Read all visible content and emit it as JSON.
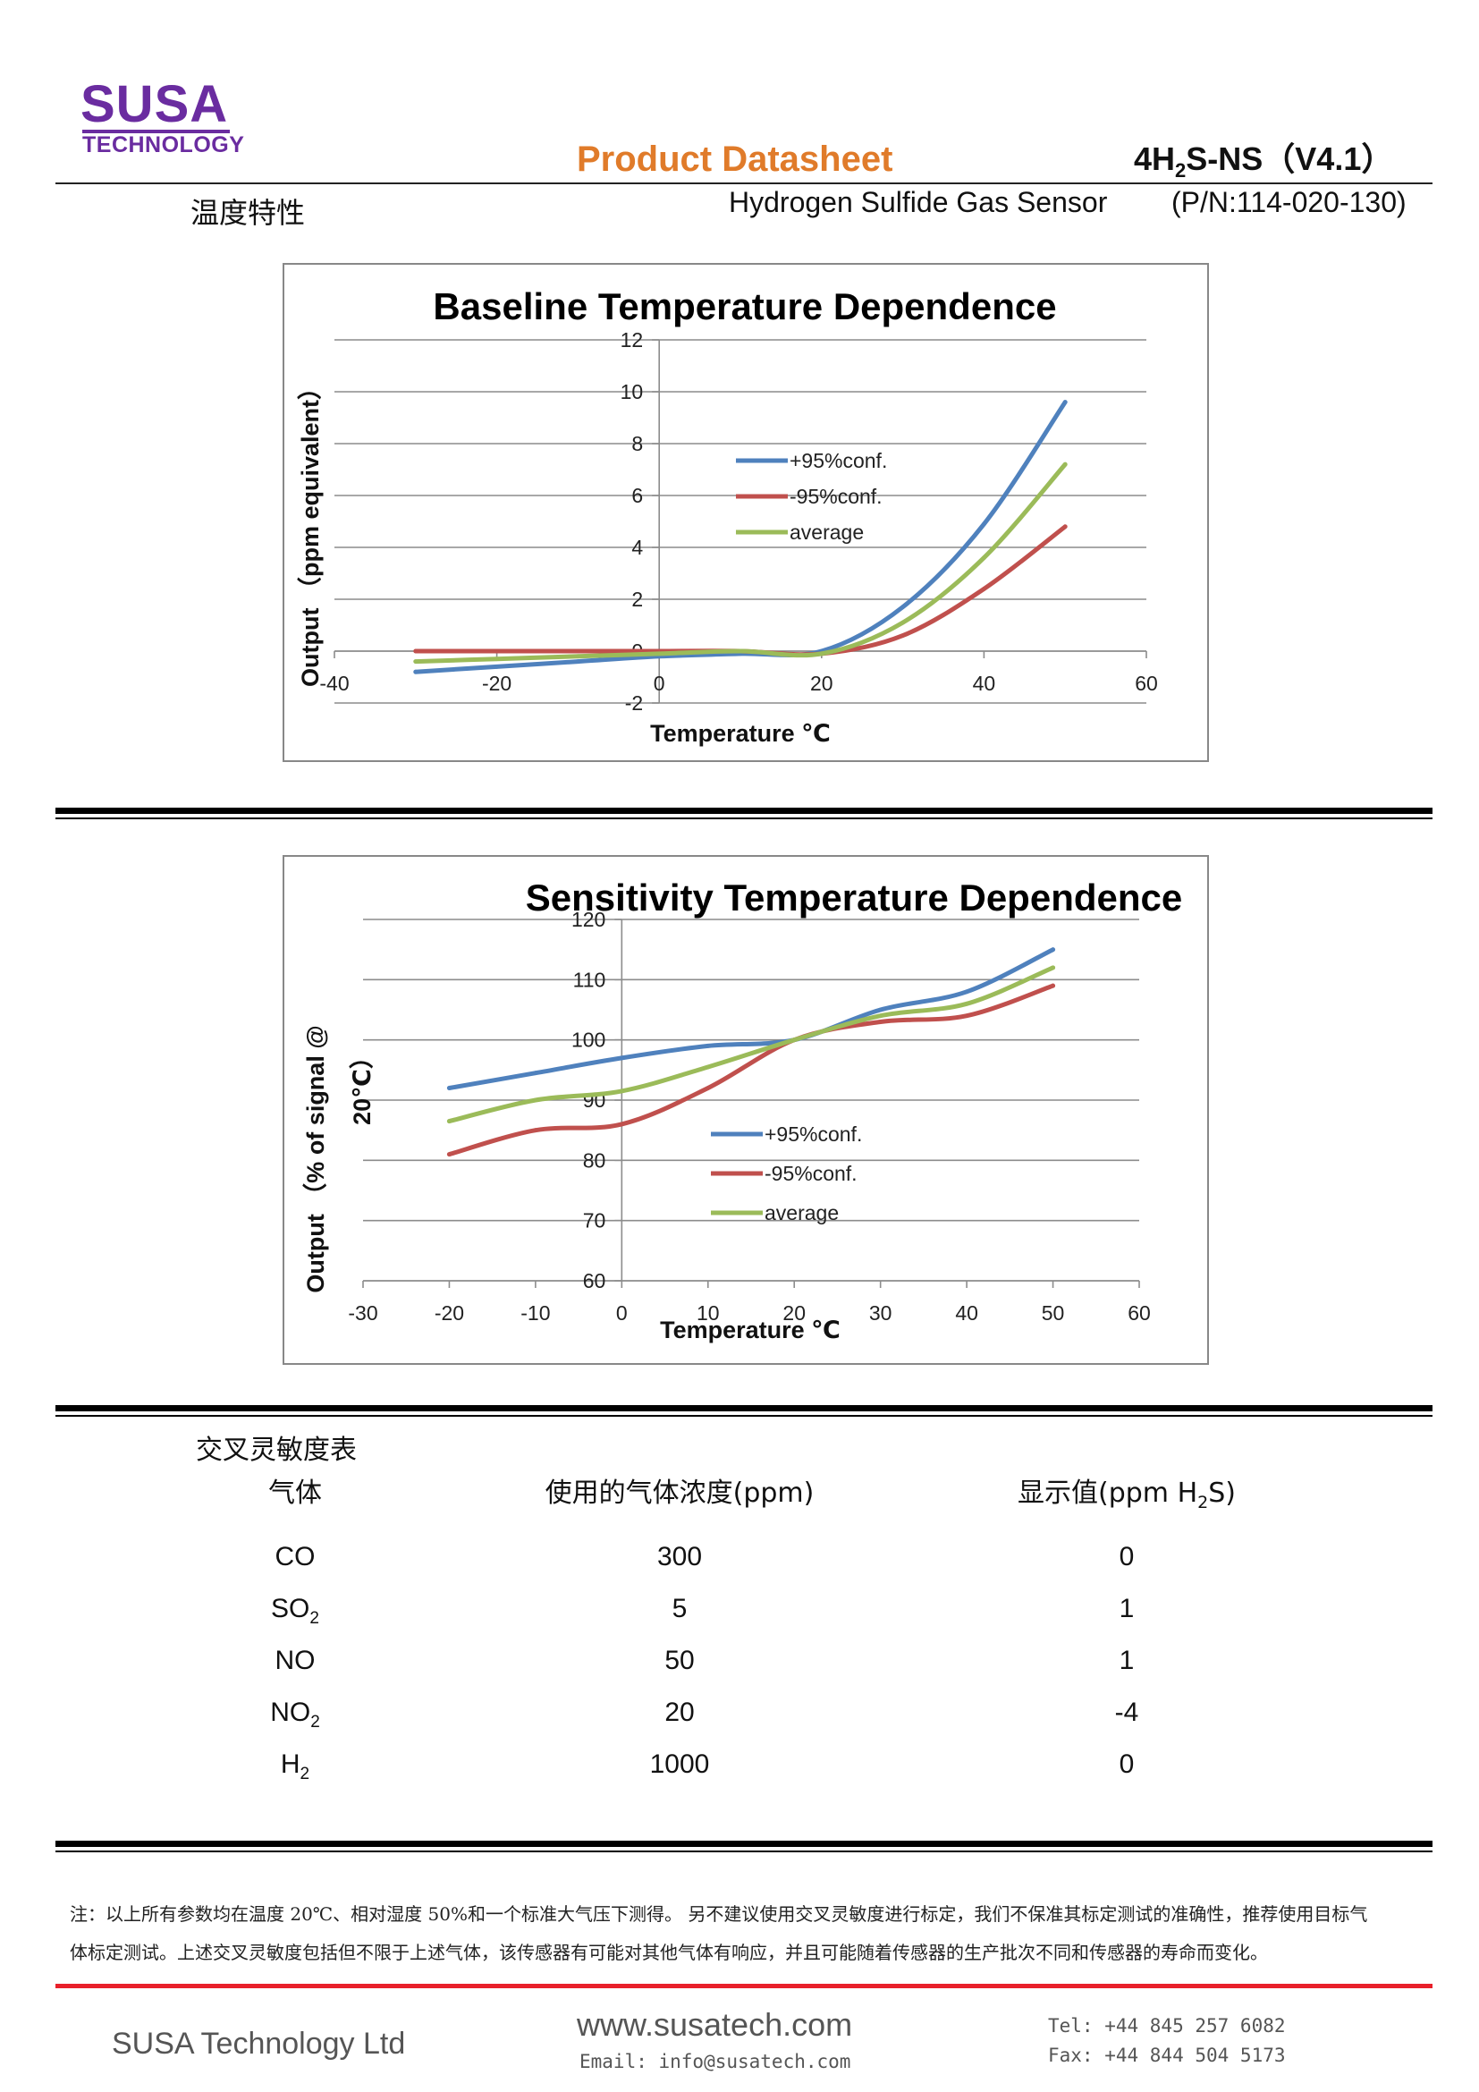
{
  "header": {
    "logo_top": "SUSA",
    "logo_bottom": "TECHNOLOGY",
    "doc_title": "Product Datasheet",
    "model_prefix": "4H",
    "model_sub": "2",
    "model_suffix": "S-NS（V4.1）",
    "section": "温度特性",
    "subtitle": "Hydrogen Sulfide Gas Sensor",
    "part_number": "(P/N:114-020-130)"
  },
  "colors": {
    "blue": "#4f81bd",
    "red": "#c0504d",
    "green": "#9bbb59",
    "accent": "#e07b2a",
    "brand": "#6a2ca0"
  },
  "chart_data": [
    {
      "type": "line",
      "title": "Baseline Temperature Dependence",
      "xlabel": "Temperature ℃",
      "ylabel": "Output （ppm equivalent）",
      "xlim": [
        -40,
        60
      ],
      "ylim": [
        -2,
        12
      ],
      "xticks": [
        -40,
        -20,
        0,
        20,
        40,
        60
      ],
      "yticks": [
        -2,
        0,
        2,
        4,
        6,
        8,
        10,
        12
      ],
      "grid": true,
      "legend": "center",
      "x": [
        -30,
        -20,
        -10,
        0,
        10,
        20,
        30,
        40,
        50
      ],
      "series": [
        {
          "name": "+95%conf.",
          "color": "#4f81bd",
          "values": [
            -0.8,
            -0.6,
            -0.4,
            -0.2,
            -0.1,
            0.0,
            1.7,
            4.9,
            9.6
          ]
        },
        {
          "name": "-95%conf.",
          "color": "#c0504d",
          "values": [
            0.0,
            0.0,
            0.0,
            0.0,
            0.0,
            -0.1,
            0.6,
            2.4,
            4.8
          ]
        },
        {
          "name": "average",
          "color": "#9bbb59",
          "values": [
            -0.4,
            -0.3,
            -0.2,
            -0.1,
            0.0,
            -0.1,
            1.1,
            3.6,
            7.2
          ]
        }
      ]
    },
    {
      "type": "line",
      "title": "Sensitivity Temperature Dependence",
      "xlabel": "Temperature ℃",
      "ylabel": "Output （% of signal @ 20℃）",
      "ylabel_line1": "Output （% of signal @",
      "ylabel_line2": "20℃）",
      "xlim": [
        -30,
        60
      ],
      "ylim": [
        60,
        120
      ],
      "xticks": [
        -30,
        -20,
        -10,
        0,
        10,
        20,
        30,
        40,
        50,
        60
      ],
      "yticks": [
        60,
        70,
        80,
        90,
        100,
        110,
        120
      ],
      "grid": true,
      "legend": "center-right",
      "x": [
        -20,
        -10,
        0,
        10,
        20,
        30,
        40,
        50
      ],
      "series": [
        {
          "name": "+95%conf.",
          "color": "#4f81bd",
          "values": [
            92,
            94.5,
            97,
            99,
            100,
            105,
            108,
            115
          ]
        },
        {
          "name": "-95%conf.",
          "color": "#c0504d",
          "values": [
            81,
            85,
            86,
            92,
            100,
            103,
            104,
            109
          ]
        },
        {
          "name": "average",
          "color": "#9bbb59",
          "values": [
            86.5,
            90,
            91.5,
            95.5,
            100,
            104,
            106,
            112
          ]
        }
      ]
    }
  ],
  "cross_table": {
    "title": "交叉灵敏度表",
    "col_gas": "气体",
    "col_conc": "使用的气体浓度(ppm)",
    "col_disp_prefix": "显示值(ppm H",
    "col_disp_sub": "2",
    "col_disp_suffix": "S)",
    "rows": [
      {
        "gas": "CO",
        "gas_sub": "",
        "conc": "300",
        "value": "0"
      },
      {
        "gas": "SO",
        "gas_sub": "2",
        "conc": "5",
        "value": "1"
      },
      {
        "gas": "NO",
        "gas_sub": "",
        "conc": "50",
        "value": "1"
      },
      {
        "gas": "NO",
        "gas_sub": "2",
        "conc": "20",
        "value": "-4"
      },
      {
        "gas": "H",
        "gas_sub": "2",
        "conc": "1000",
        "value": "0"
      }
    ]
  },
  "note": {
    "line1": "注：以上所有参数均在温度 20℃、相对湿度 50%和一个标准大气压下测得。 另不建议使用交叉灵敏度进行标定，我们不保准其标定测试的准确性，推荐使用目标气",
    "line2": "体标定测试。上述交叉灵敏度包括但不限于上述气体，该传感器有可能对其他气体有响应，并且可能随着传感器的生产批次不同和传感器的寿命而变化。"
  },
  "footer": {
    "company": "SUSA Technology Ltd",
    "website": "www.susatech.com",
    "email": "Email: info@susatech.com",
    "tel": "Tel: +44 845 257 6082",
    "fax": "Fax: +44 844 504 5173"
  }
}
